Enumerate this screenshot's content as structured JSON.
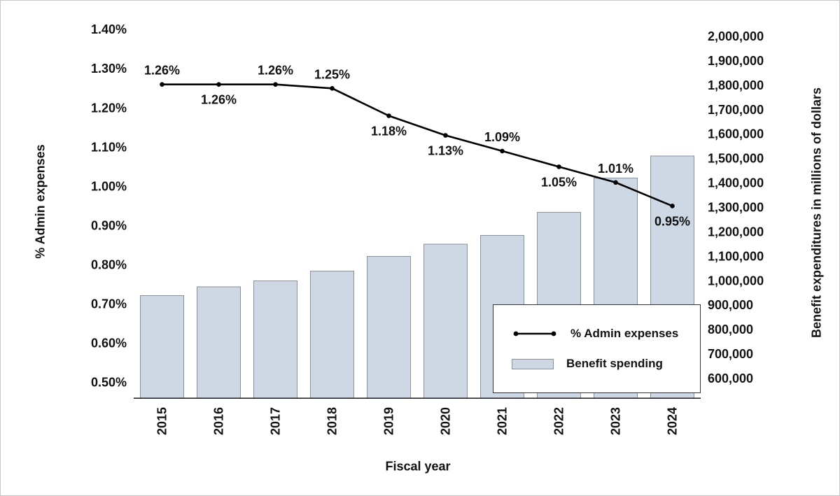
{
  "chart_data": {
    "type": "combo",
    "categories": [
      "2015",
      "2016",
      "2017",
      "2018",
      "2019",
      "2020",
      "2021",
      "2022",
      "2023",
      "2024"
    ],
    "xlabel": "Fiscal year",
    "series": [
      {
        "name": "% Admin expenses",
        "type": "line",
        "axis": "left",
        "color": "#000000",
        "values": [
          1.26,
          1.26,
          1.26,
          1.25,
          1.18,
          1.13,
          1.09,
          1.05,
          1.01,
          0.95
        ],
        "point_labels": [
          "1.26%",
          "1.26%",
          "1.26%",
          "1.25%",
          "1.18%",
          "1.13%",
          "1.09%",
          "1.05%",
          "1.01%",
          "0.95%"
        ],
        "label_positions": [
          "above",
          "below",
          "above",
          "above",
          "below",
          "below",
          "above",
          "below",
          "above",
          "below"
        ]
      },
      {
        "name": "Benefit spending",
        "type": "bar",
        "axis": "right",
        "fill": "#cdd8e4",
        "stroke": "#87929e",
        "values": [
          940000,
          975000,
          1000000,
          1040000,
          1100000,
          1150000,
          1185000,
          1280000,
          1420000,
          1510000
        ]
      }
    ],
    "left_axis": {
      "title": "% Admin expenses",
      "tick_labels": [
        "1.40%",
        "1.30%",
        "1.20%",
        "1.10%",
        "1.00%",
        "0.90%",
        "0.80%",
        "0.70%",
        "0.60%",
        "0.50%"
      ],
      "tick_values": [
        1.4,
        1.3,
        1.2,
        1.1,
        1.0,
        0.9,
        0.8,
        0.7,
        0.6,
        0.5
      ],
      "range": [
        0.46,
        1.42
      ],
      "grid": false
    },
    "right_axis": {
      "title": "Benefit expenditures in millions of dollars",
      "tick_labels": [
        "2,000,000",
        "1,900,000",
        "1,800,000",
        "1,700,000",
        "1,600,000",
        "1,500,000",
        "1,400,000",
        "1,300,000",
        "1,200,000",
        "1,100,000",
        "1,000,000",
        "900,000",
        "800,000",
        "700,000",
        "600,000"
      ],
      "tick_values": [
        2000000,
        1900000,
        1800000,
        1700000,
        1600000,
        1500000,
        1400000,
        1300000,
        1200000,
        1100000,
        1000000,
        900000,
        800000,
        700000,
        600000
      ],
      "range": [
        520000,
        2060000
      ],
      "grid": false
    },
    "legend": {
      "position": "bottom-right-inside",
      "items": [
        {
          "label": "% Admin expenses",
          "type": "line"
        },
        {
          "label": "Benefit spending",
          "type": "bar"
        }
      ]
    }
  }
}
